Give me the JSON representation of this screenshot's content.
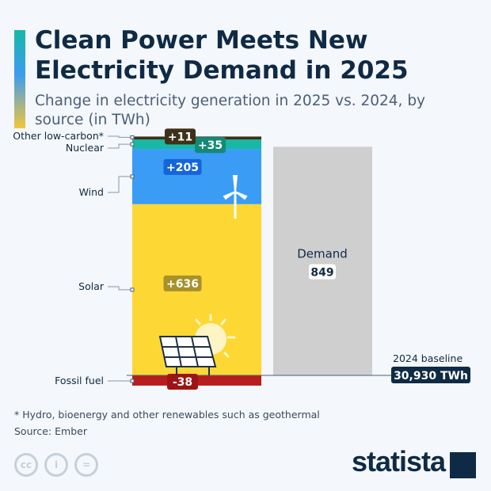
{
  "title": "Clean Power Meets New Electricity Demand in 2025",
  "subtitle": "Change in electricity generation in 2025 vs. 2024, by source (in TWh)",
  "chart_data": {
    "type": "bar",
    "stacked": true,
    "unit": "TWh",
    "series": [
      {
        "name": "Fossil fuel",
        "value": -38,
        "label": "-38",
        "color": "#b81c1c"
      },
      {
        "name": "Solar",
        "value": 636,
        "label": "+636",
        "color": "#fdd835"
      },
      {
        "name": "Wind",
        "value": 205,
        "label": "+205",
        "color": "#3a9cf5"
      },
      {
        "name": "Nuclear",
        "value": 35,
        "label": "+35",
        "color": "#17b8a6"
      },
      {
        "name": "Other low-carbon*",
        "value": 11,
        "label": "+11",
        "color": "#3d3218"
      }
    ],
    "demand": {
      "name": "Demand",
      "value": 849,
      "label": "849",
      "color": "#cfcfcf"
    },
    "baseline": {
      "label": "2024 baseline",
      "value": "30,930 TWh"
    }
  },
  "footnote": "* Hydro, bioenergy and other renewables such as geothermal",
  "source": "Source: Ember",
  "license_icons": [
    "cc-icon",
    "by-icon",
    "nd-icon"
  ],
  "logo": "statista"
}
